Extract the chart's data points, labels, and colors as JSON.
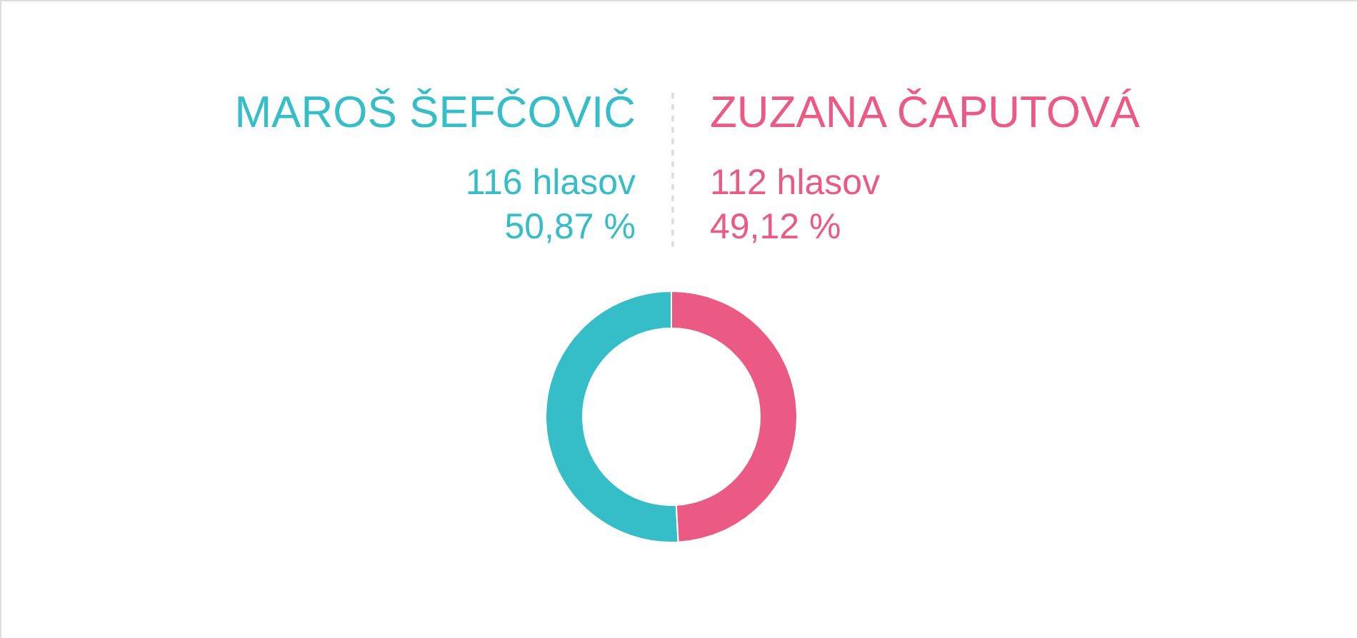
{
  "chart_data": {
    "type": "donut",
    "categories": [
      "MAROŠ ŠEFČOVIČ",
      "ZUZANA ČAPUTOVÁ"
    ],
    "values": [
      116,
      112
    ],
    "colors": [
      "#35bec8",
      "#ea5a84"
    ],
    "value_labels": [
      "116 hlasov",
      "112 hlasov"
    ],
    "annotations": [
      "50,87 %",
      "49,12 %"
    ]
  }
}
